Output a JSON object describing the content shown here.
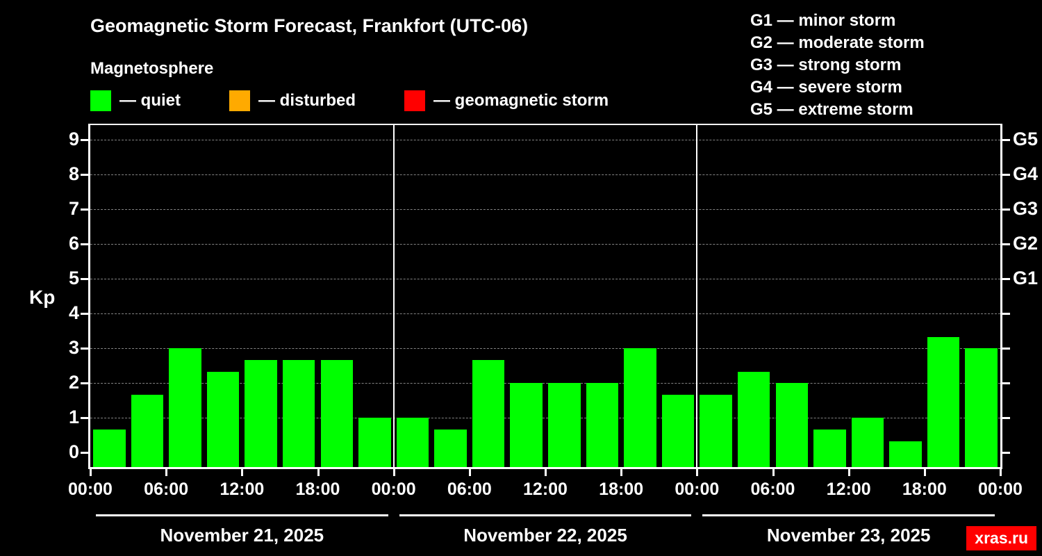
{
  "header": {
    "title": "Geomagnetic Storm Forecast, Frankfort (UTC-06)",
    "subtitle": "Magnetosphere",
    "watermark": "xras.ru"
  },
  "legend": {
    "items": [
      {
        "label": "— quiet",
        "color": "#00ff00"
      },
      {
        "label": "— disturbed",
        "color": "#ffaa00"
      },
      {
        "label": "— geomagnetic storm",
        "color": "#ff0000"
      }
    ],
    "storm_scale": [
      "G1 — minor storm",
      "G2 — moderate storm",
      "G3 — strong storm",
      "G4 — severe storm",
      "G5 — extreme storm"
    ]
  },
  "chart_data": {
    "type": "bar",
    "title": "Geomagnetic Storm Forecast, Frankfort (UTC-06)",
    "subtitle": "Magnetosphere",
    "ylabel": "Kp",
    "ylim": [
      0,
      9.5
    ],
    "y_ticks": [
      0,
      1,
      2,
      3,
      4,
      5,
      6,
      7,
      8,
      9
    ],
    "x_ticks": [
      "00:00",
      "06:00",
      "12:00",
      "18:00",
      "00:00",
      "06:00",
      "12:00",
      "18:00",
      "00:00",
      "06:00",
      "12:00",
      "18:00",
      "00:00"
    ],
    "hours_per_bar": 3,
    "grid": "horizontal dashed",
    "right_axis_labels": [
      {
        "kp": 5,
        "label": "G1"
      },
      {
        "kp": 6,
        "label": "G2"
      },
      {
        "kp": 7,
        "label": "G3"
      },
      {
        "kp": 8,
        "label": "G4"
      },
      {
        "kp": 9,
        "label": "G5"
      }
    ],
    "color_rules": {
      "quiet_below": 4,
      "disturbed_below": 5,
      "colors": {
        "quiet": "#00ff00",
        "disturbed": "#ffaa00",
        "storm": "#ff0000"
      }
    },
    "days": [
      {
        "label": "November 21, 2025",
        "values": [
          0.67,
          1.67,
          3.0,
          2.33,
          2.67,
          2.67,
          2.67,
          1.0
        ]
      },
      {
        "label": "November 22, 2025",
        "values": [
          1.0,
          0.67,
          2.67,
          2.0,
          2.0,
          2.0,
          3.0,
          1.67
        ]
      },
      {
        "label": "November 23, 2025",
        "values": [
          1.67,
          2.33,
          2.0,
          0.67,
          1.0,
          0.33,
          3.33,
          3.0
        ]
      }
    ]
  }
}
